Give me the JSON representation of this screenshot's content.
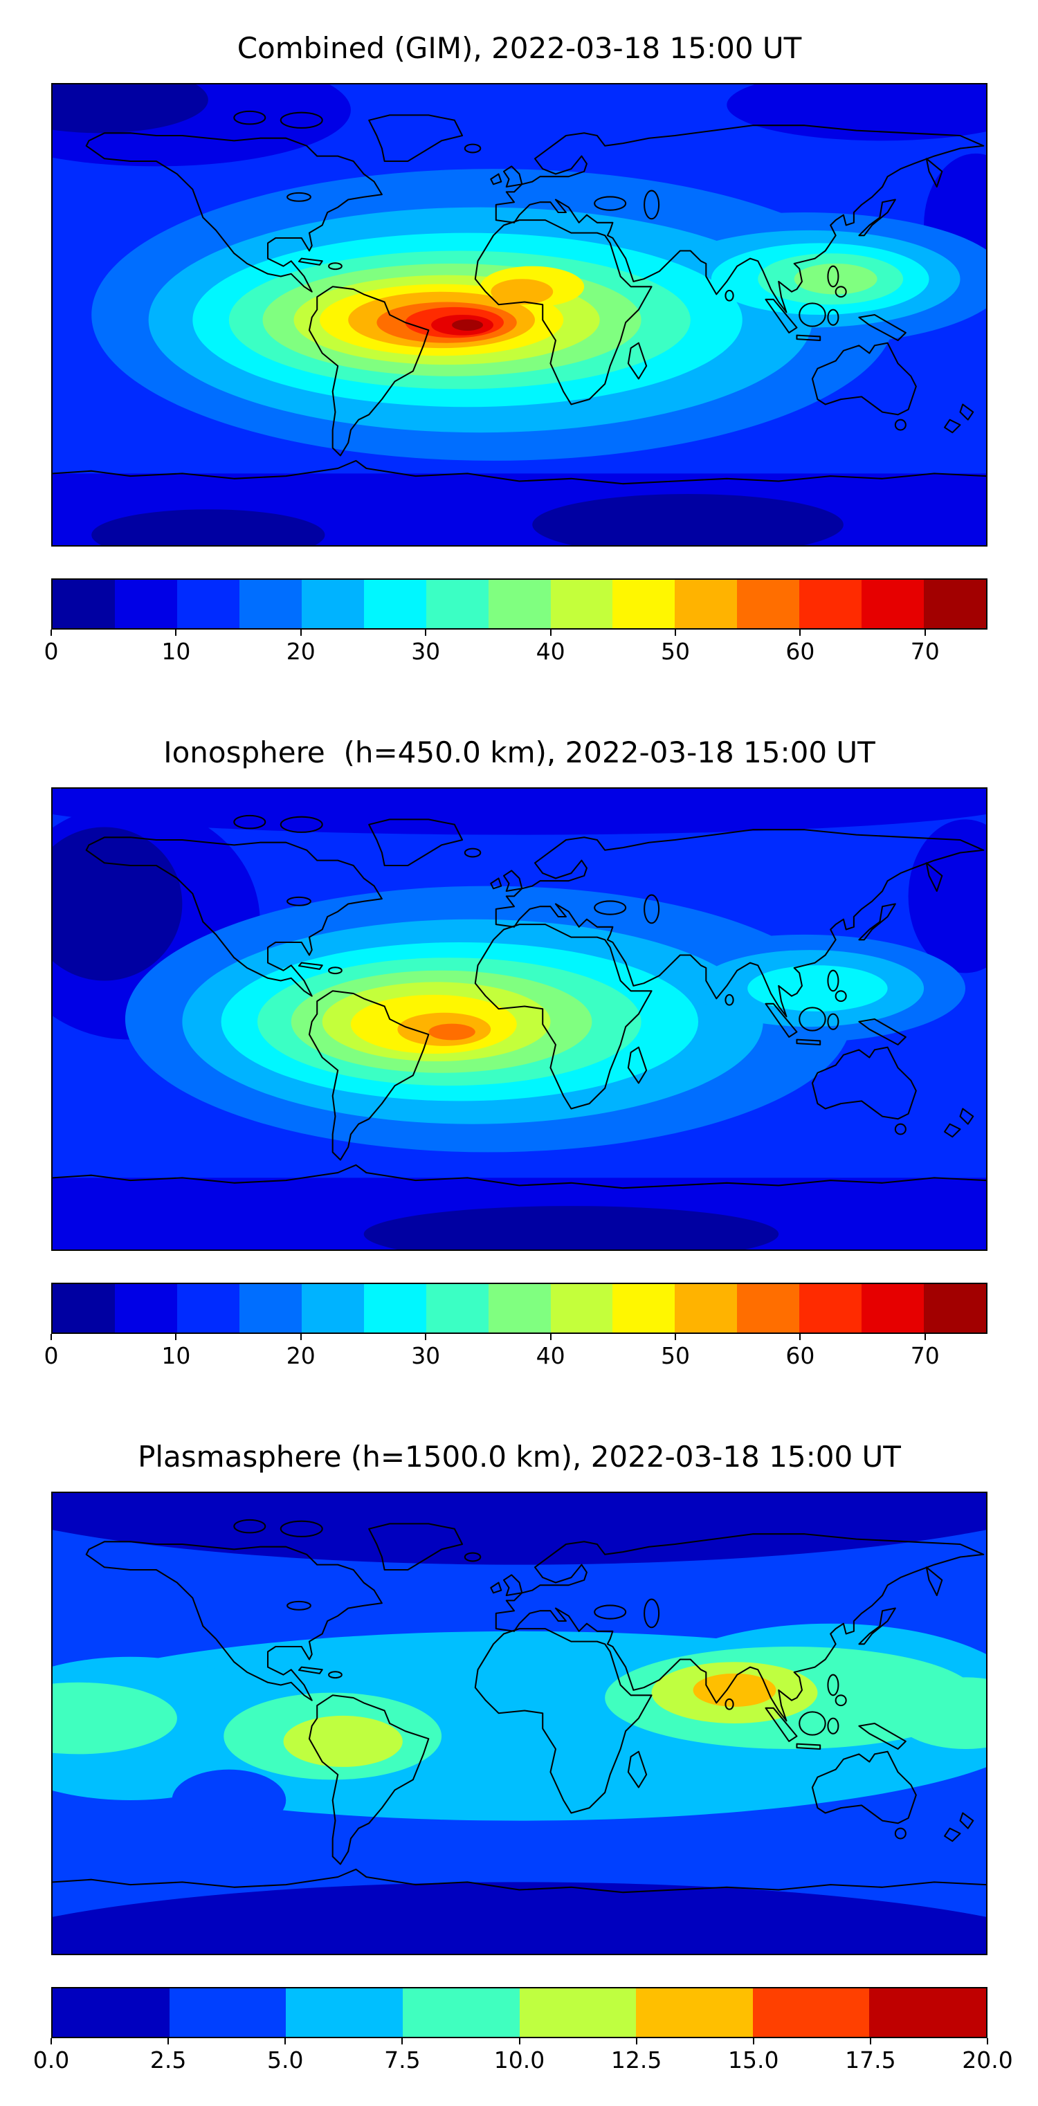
{
  "figure": {
    "background_color": "#ffffff",
    "palette15": [
      "#0000a2",
      "#0000e6",
      "#002bff",
      "#006eff",
      "#00b3ff",
      "#00f7ff",
      "#3bffc4",
      "#80ff80",
      "#c4ff3b",
      "#fff700",
      "#ffb300",
      "#ff6e00",
      "#ff2b00",
      "#e60000",
      "#a20000"
    ],
    "palette8": [
      "#0000bf",
      "#0040ff",
      "#00bfff",
      "#40ffbf",
      "#bfff40",
      "#ffbf00",
      "#ff4000",
      "#bf0000"
    ],
    "coastline_color": "#000000",
    "panels": [
      {
        "id": "combined",
        "title": "Combined (GIM), 2022-03-18 15:00 UT",
        "colorbar": {
          "vmin": 0,
          "vmax": 75,
          "tick_values": [
            0,
            10,
            20,
            30,
            40,
            50,
            60,
            70
          ],
          "tick_labels": [
            "0",
            "10",
            "20",
            "30",
            "40",
            "50",
            "60",
            "70"
          ],
          "palette": "palette15"
        }
      },
      {
        "id": "ionosphere",
        "title": "Ionosphere  (h=450.0 km), 2022-03-18 15:00 UT",
        "colorbar": {
          "vmin": 0,
          "vmax": 75,
          "tick_values": [
            0,
            10,
            20,
            30,
            40,
            50,
            60,
            70
          ],
          "tick_labels": [
            "0",
            "10",
            "20",
            "30",
            "40",
            "50",
            "60",
            "70"
          ],
          "palette": "palette15"
        }
      },
      {
        "id": "plasmasphere",
        "title": "Plasmasphere (h=1500.0 km), 2022-03-18 15:00 UT",
        "colorbar": {
          "vmin": 0,
          "vmax": 20,
          "tick_values": [
            0,
            2.5,
            5,
            7.5,
            10,
            12.5,
            15,
            17.5,
            20
          ],
          "tick_labels": [
            "0.0",
            "2.5",
            "5.0",
            "7.5",
            "10.0",
            "12.5",
            "15.0",
            "17.5",
            "20.0"
          ],
          "palette": "palette8"
        }
      }
    ]
  },
  "chart_data": [
    {
      "type": "heatmap",
      "subtype": "filled-contour global map",
      "title": "Combined (GIM), 2022-03-18 15:00 UT",
      "projection": "equirectangular",
      "lon_range": [
        -180,
        180
      ],
      "lat_range": [
        -90,
        90
      ],
      "colormap": "jet",
      "value_range": [
        0,
        75
      ],
      "contour_interval": 5,
      "colorbar_ticks": [
        0,
        10,
        20,
        30,
        40,
        50,
        60,
        70
      ],
      "legend_position": "bottom horizontal colorbar",
      "features": [
        {
          "name": "equatorial-anomaly-peak",
          "lon": -12,
          "lat": -7,
          "approx_value": 73
        },
        {
          "name": "sahara-enhancement",
          "lon": 5,
          "lat": 11,
          "approx_value": 52
        },
        {
          "name": "southeast-asia-enhancement",
          "lon": 120,
          "lat": 14,
          "approx_value": 38
        },
        {
          "name": "midlatitude-background",
          "approx_value": 12
        },
        {
          "name": "northeast-pacific-minimum",
          "lon": -160,
          "lat": 80,
          "approx_value": 4
        },
        {
          "name": "south-polar-minimum",
          "lat": -80,
          "approx_value": 6
        }
      ]
    },
    {
      "type": "heatmap",
      "subtype": "filled-contour global map",
      "title": "Ionosphere  (h=450.0 km), 2022-03-18 15:00 UT",
      "projection": "equirectangular",
      "lon_range": [
        -180,
        180
      ],
      "lat_range": [
        -90,
        90
      ],
      "colormap": "jet",
      "value_range": [
        0,
        75
      ],
      "contour_interval": 5,
      "colorbar_ticks": [
        0,
        10,
        20,
        30,
        40,
        50,
        60,
        70
      ],
      "legend_position": "bottom horizontal colorbar",
      "features": [
        {
          "name": "equatorial-anomaly-peak",
          "lon": -15,
          "lat": -4,
          "approx_value": 58
        },
        {
          "name": "africa-south-america-yellow-region",
          "lon": -20,
          "lat": 0,
          "approx_value": 47
        },
        {
          "name": "southeast-asia-enhancement",
          "lon": 118,
          "lat": 12,
          "approx_value": 28
        },
        {
          "name": "northeast-pacific-minimum",
          "lon": -155,
          "lat": 45,
          "approx_value": 3
        },
        {
          "name": "south-polar-minimum",
          "lat": -80,
          "approx_value": 4
        }
      ]
    },
    {
      "type": "heatmap",
      "subtype": "filled-contour global map",
      "title": "Plasmasphere (h=1500.0 km), 2022-03-18 15:00 UT",
      "projection": "equirectangular",
      "lon_range": [
        -180,
        180
      ],
      "lat_range": [
        -90,
        90
      ],
      "colormap": "jet",
      "value_range": [
        0,
        20
      ],
      "contour_interval": 2.5,
      "colorbar_ticks": [
        0,
        2.5,
        5,
        7.5,
        10,
        12.5,
        15,
        17.5,
        20
      ],
      "legend_position": "bottom horizontal colorbar",
      "features": [
        {
          "name": "equatorial-band",
          "lat_range": [
            -30,
            30
          ],
          "approx_value_range": [
            5,
            10
          ]
        },
        {
          "name": "india-peak",
          "lon": 84,
          "lat": 13,
          "approx_value": 14
        },
        {
          "name": "south-america-enhancement",
          "lon": -68,
          "lat": -7,
          "approx_value": 11
        },
        {
          "name": "west-pacific-green-region",
          "lon": 110,
          "lat": 10,
          "approx_value": 9
        },
        {
          "name": "high-latitude-minimum",
          "approx_value": 2
        }
      ]
    }
  ]
}
